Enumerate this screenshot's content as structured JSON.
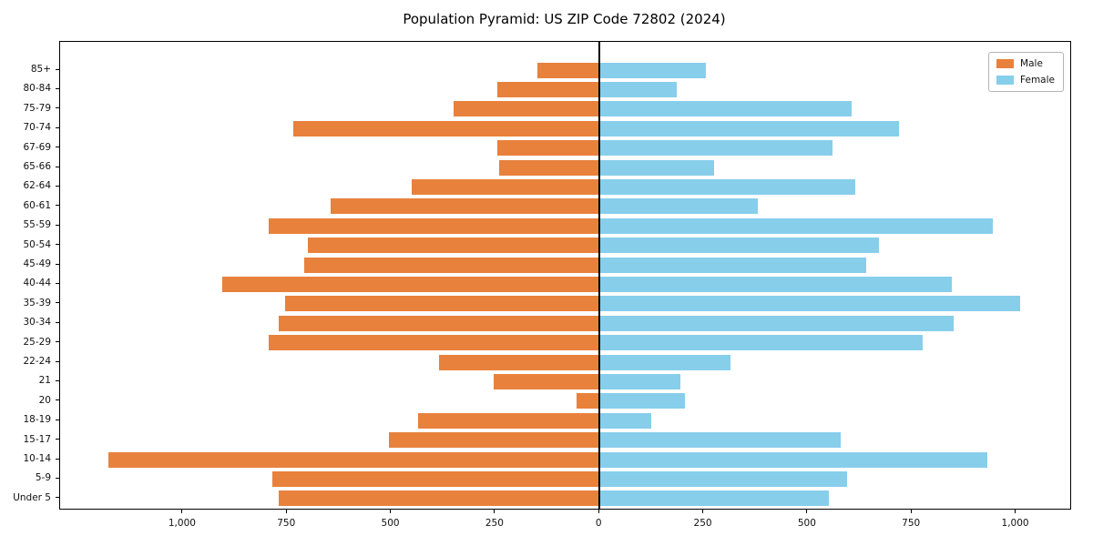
{
  "title": "Population Pyramid: US ZIP Code 72802 (2024)",
  "legend": {
    "male_label": "Male",
    "female_label": "Female"
  },
  "colors": {
    "male": "#e8813c",
    "female": "#87ceeb",
    "axis": "#000000",
    "legend_border": "#b5b5b5",
    "background": "#ffffff"
  },
  "chart_data": {
    "type": "bar",
    "orientation": "horizontal-population-pyramid",
    "title": "Population Pyramid: US ZIP Code 72802 (2024)",
    "xlabel": "",
    "ylabel": "",
    "grid": false,
    "legend_position": "upper right",
    "categories_top_to_bottom": [
      "85+",
      "80-84",
      "75-79",
      "70-74",
      "67-69",
      "65-66",
      "62-64",
      "60-61",
      "55-59",
      "50-54",
      "45-49",
      "40-44",
      "35-39",
      "30-34",
      "25-29",
      "22-24",
      "21",
      "20",
      "18-19",
      "15-17",
      "10-14",
      "5-9",
      "Under 5"
    ],
    "series": [
      {
        "name": "Male",
        "side": "left",
        "color_key": "male",
        "values": [
          150,
          245,
          350,
          735,
          245,
          240,
          450,
          645,
          795,
          700,
          710,
          905,
          755,
          770,
          795,
          385,
          255,
          55,
          435,
          505,
          1180,
          785,
          770
        ]
      },
      {
        "name": "Female",
        "side": "right",
        "color_key": "female",
        "values": [
          255,
          185,
          605,
          720,
          560,
          275,
          615,
          380,
          945,
          670,
          640,
          845,
          1010,
          850,
          775,
          315,
          195,
          205,
          125,
          580,
          930,
          595,
          550
        ]
      }
    ],
    "xlim": [
      -1295,
      1130
    ],
    "x_ticks": [
      {
        "value": -1000,
        "label": "1,000"
      },
      {
        "value": -750,
        "label": "750"
      },
      {
        "value": -500,
        "label": "500"
      },
      {
        "value": -250,
        "label": "250"
      },
      {
        "value": 0,
        "label": "0"
      },
      {
        "value": 250,
        "label": "250"
      },
      {
        "value": 500,
        "label": "500"
      },
      {
        "value": 750,
        "label": "750"
      },
      {
        "value": 1000,
        "label": "1,000"
      }
    ]
  }
}
